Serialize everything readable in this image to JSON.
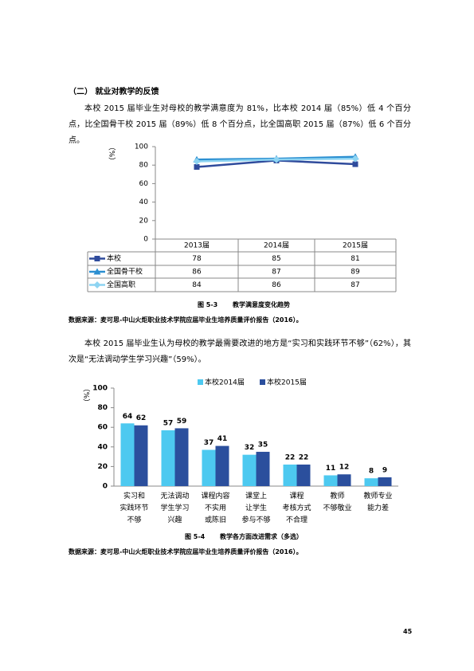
{
  "document": {
    "heading": "（二） 就业对教学的反馈",
    "paragraph1": "本校 2015 届毕业生对母校的教学满意度为 81%，比本校 2014 届（85%）低 4 个百分点，比全国骨干校 2015 届（89%）低 8 个百分点，比全国高职 2015 届（87%）低 6 个百分点。",
    "figure1_number": "图 5-3",
    "figure1_title": "教学满意度变化趋势",
    "source1": "数据来源：麦可思-中山火炬职业技术学院应届毕业生培养质量评价报告（2016）。",
    "paragraph2": "本校 2015 届毕业生认为母校的教学最需要改进的地方是“实习和实践环节不够”（62%），其次是“无法调动学生学习兴趣”（59%）。",
    "figure2_number": "图 5-4",
    "figure2_title": "教学各方面改进需求（多选）",
    "source2": "数据来源：麦可思-中山火炬职业技术学院应届毕业生培养质量评价报告（2016）。",
    "page_number": "45"
  },
  "chart_data": [
    {
      "type": "line",
      "y_label": "（%）",
      "categories": [
        "2013届",
        "2014届",
        "2015届"
      ],
      "series": [
        {
          "name": "本校",
          "color": "#2f4b9c",
          "marker": "square",
          "values": [
            78,
            85,
            81
          ]
        },
        {
          "name": "全国骨干校",
          "color": "#2b8fd1",
          "marker": "triangle",
          "values": [
            86,
            87,
            89
          ]
        },
        {
          "name": "全国高职",
          "color": "#8dd4f2",
          "marker": "diamond",
          "values": [
            84,
            86,
            87
          ]
        }
      ],
      "ylim": [
        0,
        100
      ],
      "yticks": [
        0,
        20,
        40,
        60,
        80,
        100
      ]
    },
    {
      "type": "bar",
      "y_label": "（%）",
      "categories": [
        "实习和\n实践环节\n不够",
        "无法调动\n学生学习\n兴趣",
        "课程内容\n不实用\n或陈旧",
        "课堂上\n让学生\n参与不够",
        "课程\n考核方式\n不合理",
        "教师\n不够敬业",
        "教师专业\n能力差"
      ],
      "series": [
        {
          "name": "本校2014届",
          "color": "#4dc9f0",
          "values": [
            64,
            57,
            37,
            32,
            22,
            11,
            8
          ]
        },
        {
          "name": "本校2015届",
          "color": "#2b4f9d",
          "values": [
            62,
            59,
            41,
            35,
            22,
            12,
            9
          ]
        }
      ],
      "ylim": [
        0,
        100
      ],
      "yticks": [
        0,
        20,
        40,
        60,
        80,
        100
      ]
    }
  ]
}
